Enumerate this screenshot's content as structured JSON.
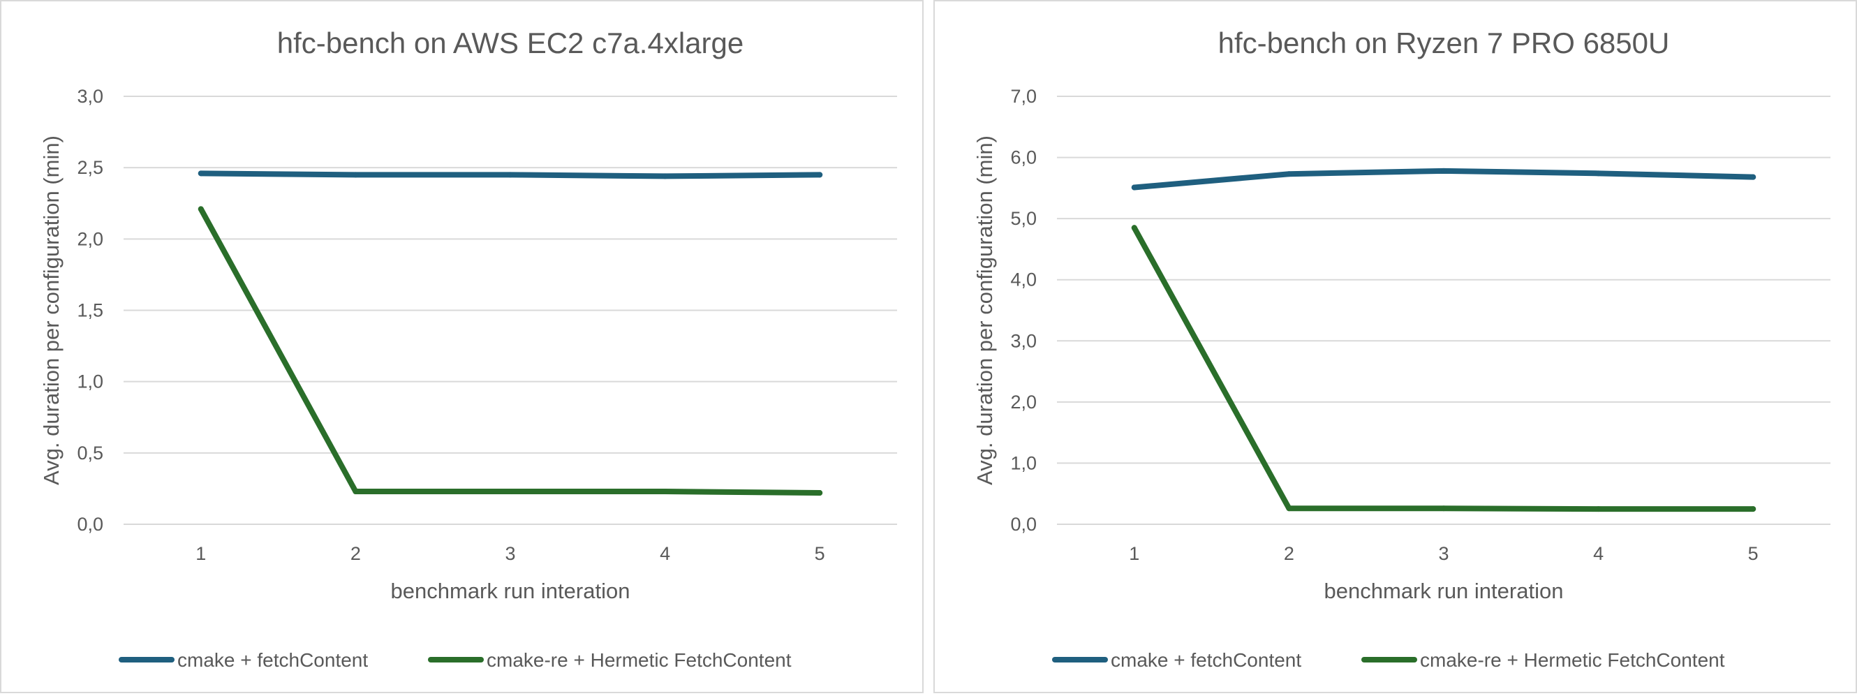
{
  "chart_data": [
    {
      "type": "line",
      "title": "hfc-bench on AWS EC2 c7a.4xlarge",
      "xlabel": "benchmark run interation",
      "ylabel": "Avg. duration per configuration (min)",
      "categories": [
        "1",
        "2",
        "3",
        "4",
        "5"
      ],
      "ylim": [
        0,
        3
      ],
      "yticks": [
        0,
        0.5,
        1,
        1.5,
        2,
        2.5,
        3
      ],
      "ytick_labels": [
        "0,0",
        "0,5",
        "1,0",
        "1,5",
        "2,0",
        "2,5",
        "3,0"
      ],
      "grid": true,
      "legend": "bottom",
      "series": [
        {
          "name": "cmake + fetchContent",
          "color": "#1f5f7f",
          "values": [
            2.46,
            2.45,
            2.45,
            2.44,
            2.45
          ]
        },
        {
          "name": "cmake-re + Hermetic FetchContent",
          "color": "#2a6e2a",
          "values": [
            2.21,
            0.23,
            0.23,
            0.23,
            0.22
          ]
        }
      ]
    },
    {
      "type": "line",
      "title": "hfc-bench on  Ryzen 7 PRO 6850U",
      "xlabel": "benchmark run interation",
      "ylabel": "Avg. duration per configuration (min)",
      "categories": [
        "1",
        "2",
        "3",
        "4",
        "5"
      ],
      "ylim": [
        0,
        7
      ],
      "yticks": [
        0,
        1,
        2,
        3,
        4,
        5,
        6,
        7
      ],
      "ytick_labels": [
        "0,0",
        "1,0",
        "2,0",
        "3,0",
        "4,0",
        "5,0",
        "6,0",
        "7,0"
      ],
      "grid": true,
      "legend": "bottom",
      "series": [
        {
          "name": "cmake + fetchContent",
          "color": "#1f5f7f",
          "values": [
            5.51,
            5.73,
            5.78,
            5.74,
            5.68
          ]
        },
        {
          "name": "cmake-re + Hermetic FetchContent",
          "color": "#2a6e2a",
          "values": [
            4.85,
            0.26,
            0.26,
            0.25,
            0.25
          ]
        }
      ]
    }
  ]
}
